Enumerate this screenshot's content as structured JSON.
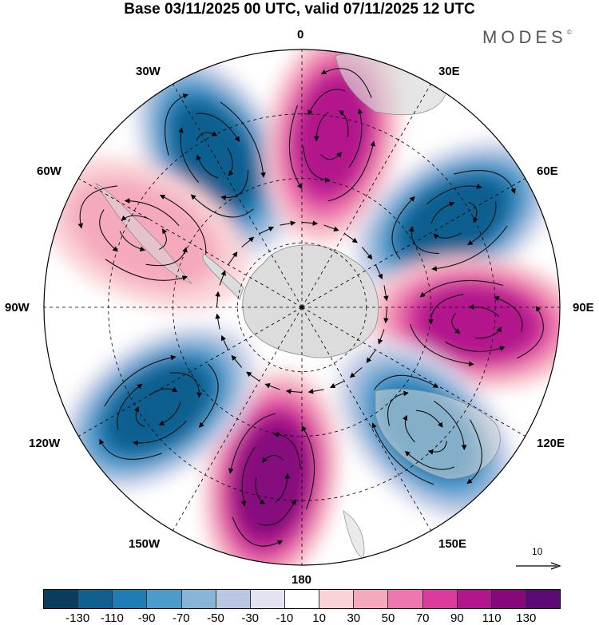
{
  "title": "Base 03/11/2025 00 UTC, valid 07/11/2025 12 UTC",
  "brand": "MODES",
  "brand_mark": "©",
  "longitude_labels": {
    "lon_0": "0",
    "lon_30e": "30E",
    "lon_60e": "60E",
    "lon_90e": "90E",
    "lon_120e": "120E",
    "lon_150e": "150E",
    "lon_180": "180",
    "lon_150w": "150W",
    "lon_120w": "120W",
    "lon_90w": "90W",
    "lon_60w": "60W",
    "lon_30w": "30W"
  },
  "reference_vector": {
    "value": "10",
    "icon": "arrow-right-icon"
  },
  "colorbar": {
    "labels": [
      "-130",
      "-110",
      "-90",
      "-70",
      "-50",
      "-30",
      "-10",
      "10",
      "30",
      "50",
      "70",
      "90",
      "110",
      "130"
    ],
    "colors": [
      "#0b3d5c",
      "#115f8f",
      "#1f7cb5",
      "#4b9ccb",
      "#88b4d8",
      "#b9c7e3",
      "#e3e3f1",
      "#ffffff",
      "#f9d3d7",
      "#f5a9bd",
      "#ee77b0",
      "#da3c9e",
      "#b3168c",
      "#86087d",
      "#5c0a74"
    ]
  },
  "anomaly_centers": [
    {
      "lon_label": "30W",
      "value": -120
    },
    {
      "lon_label": "10E",
      "value": 110
    },
    {
      "lon_label": "60E",
      "value": -120
    },
    {
      "lon_label": "95E",
      "value": 100
    },
    {
      "lon_label": "135E",
      "value": -110
    },
    {
      "lon_label": "170W",
      "value": 120
    },
    {
      "lon_label": "125W",
      "value": -120
    },
    {
      "lon_label": "65W",
      "value": 50
    }
  ]
}
